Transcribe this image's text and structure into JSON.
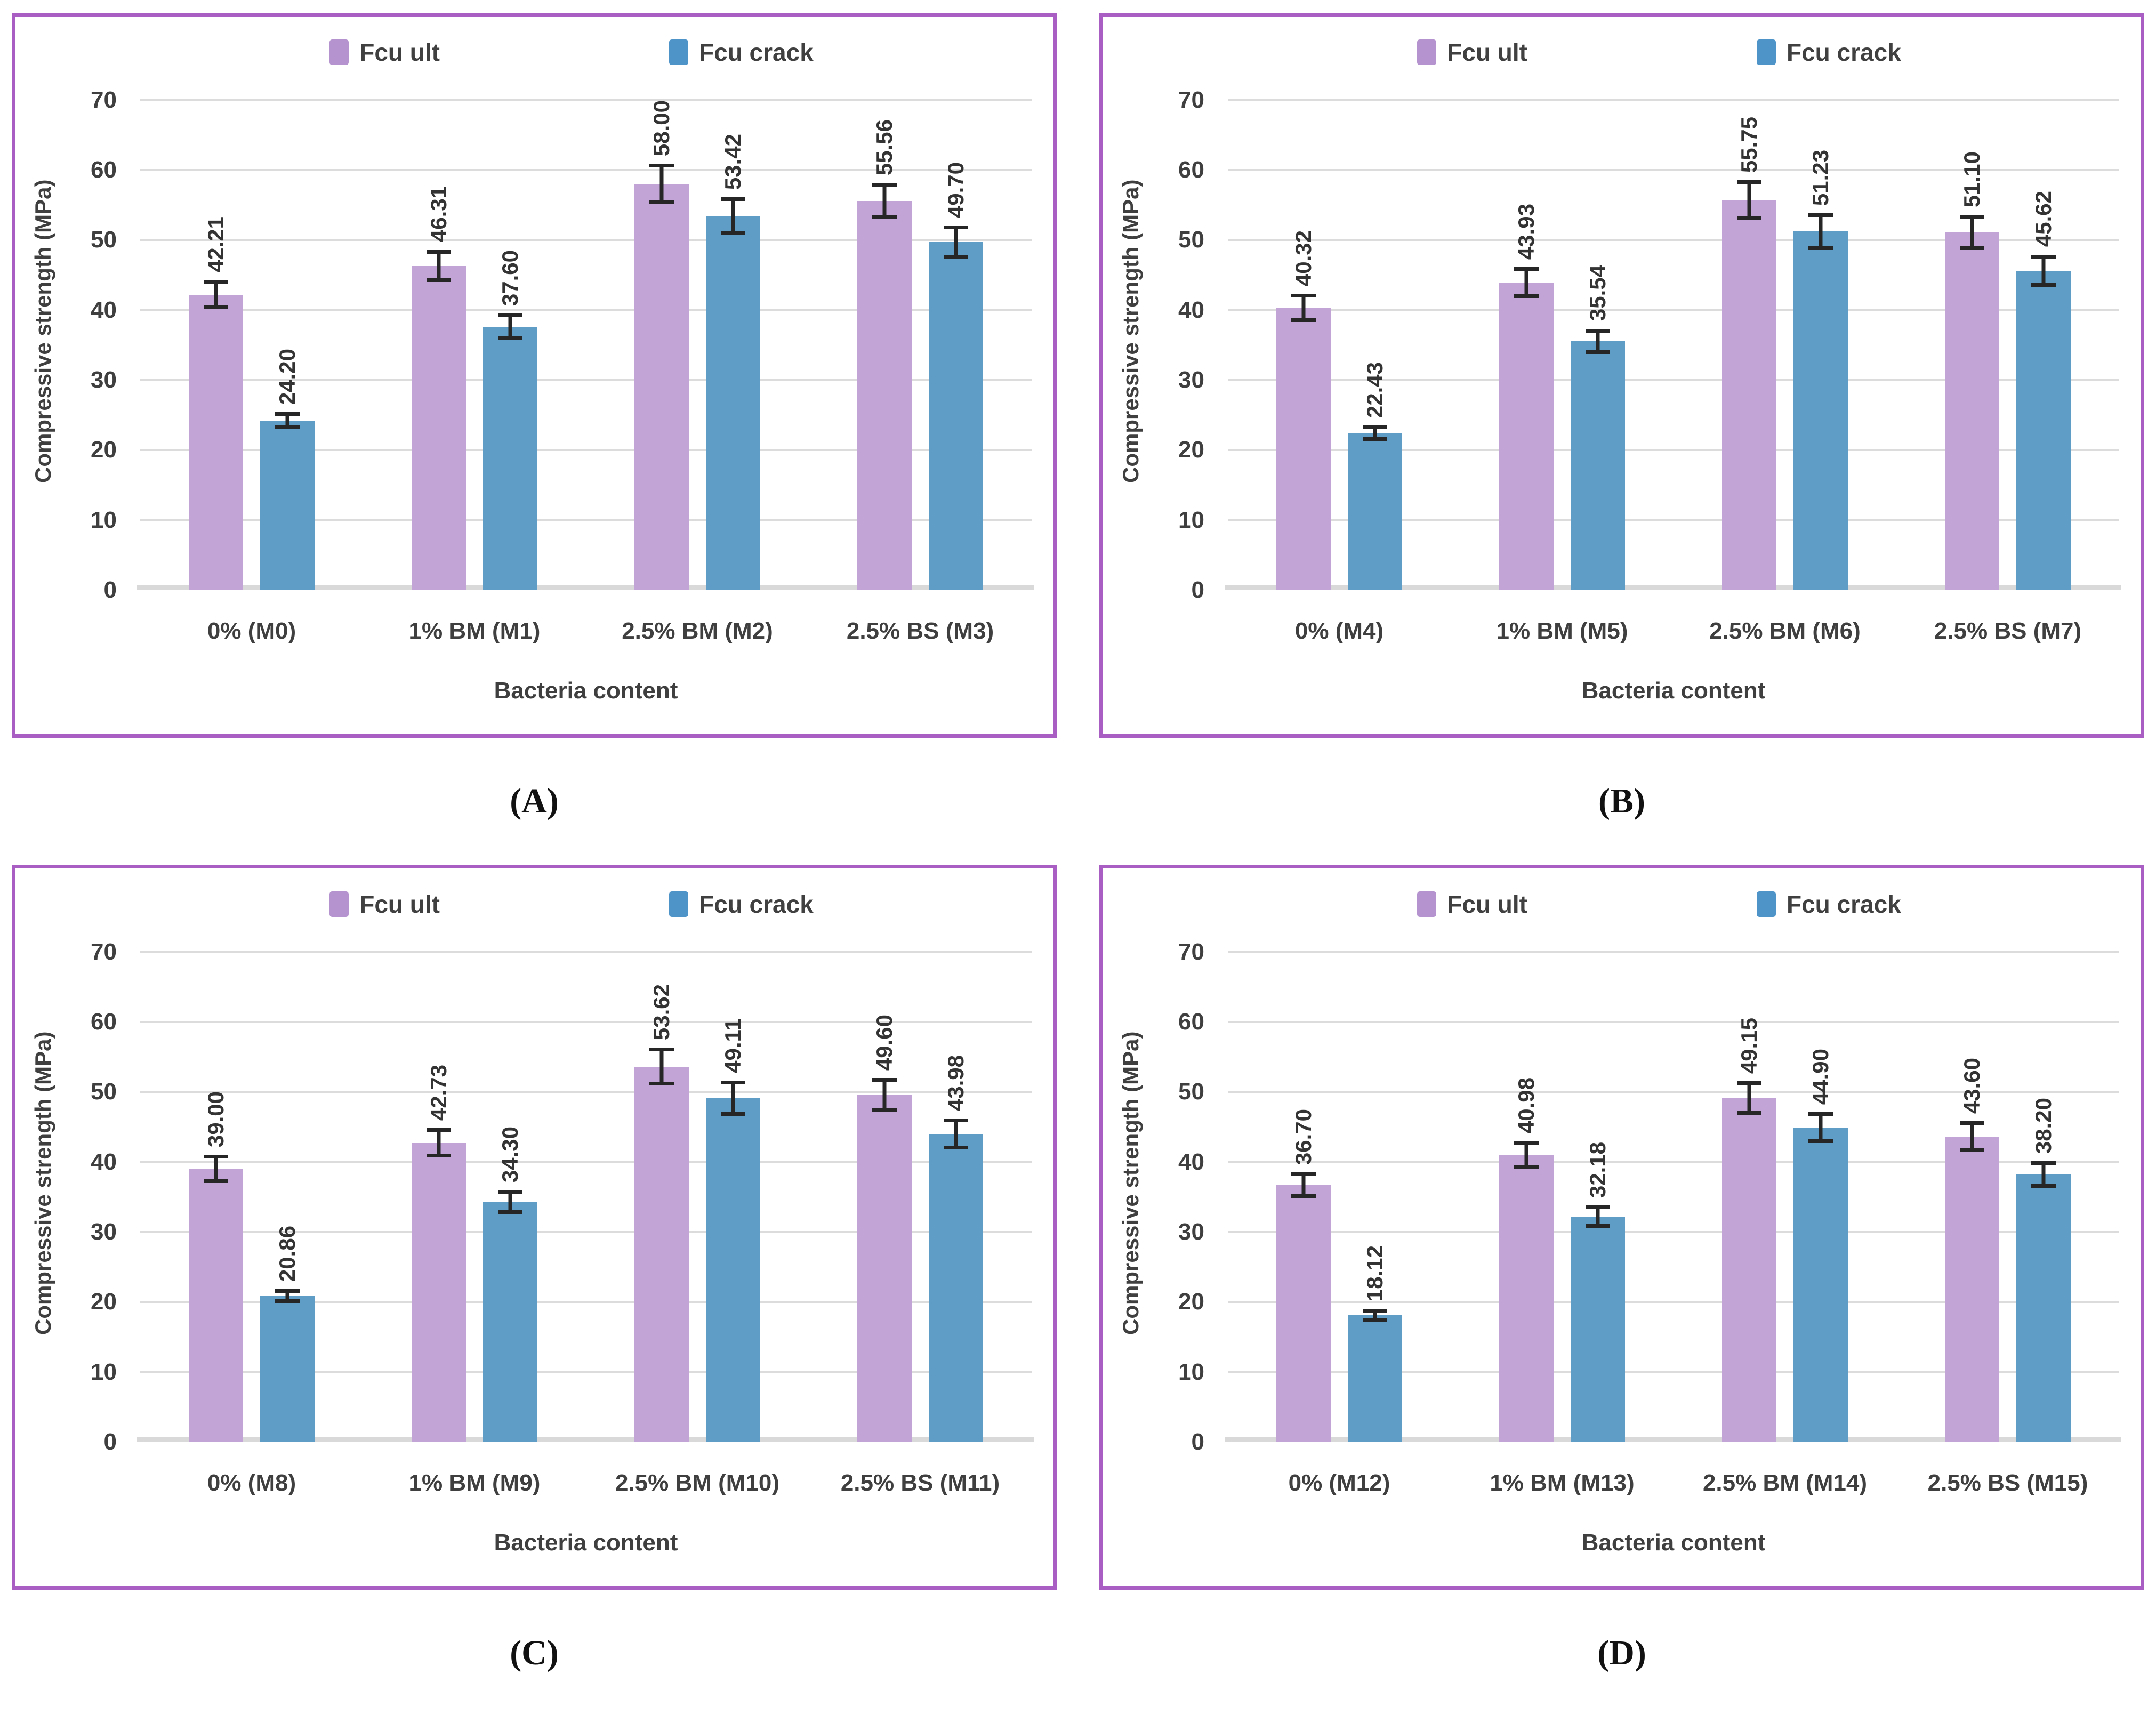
{
  "chart_config": {
    "colors": {
      "fcu_ult_bar": "#c2a4d6",
      "fcu_crack_bar": "#5f9dc6",
      "panel_border": "#a95ec4",
      "gridline": "#dcdcdc",
      "baseline": "#d9d9d9",
      "text": "#3f3f3f",
      "error_bar": "#262626"
    },
    "swatch_colors": [
      "#b493ce",
      "#4f94c9"
    ],
    "y_headroom_units": 74
  },
  "chart_data": [
    {
      "panel_label": "A",
      "caption": "(A)",
      "type": "bar",
      "xlabel": "Bacteria content",
      "ylabel": "Compressive  strength (MPa)",
      "ylim": [
        0,
        70
      ],
      "yticks": [
        0,
        10,
        20,
        30,
        40,
        50,
        60,
        70
      ],
      "grid": true,
      "legend_position": "top-center",
      "legend_entries": [
        "Fcu ult",
        "Fcu crack"
      ],
      "categories": [
        "0% (M0)",
        "1% BM (M1)",
        "2.5% BM (M2)",
        "2.5% BS (M3)"
      ],
      "series": [
        {
          "name": "Fcu ult",
          "color": "#c2a4d6",
          "values": [
            42.21,
            46.31,
            58.0,
            55.56
          ],
          "errors": [
            2.1,
            2.3,
            2.9,
            2.6
          ]
        },
        {
          "name": "Fcu crack",
          "color": "#5f9dc6",
          "values": [
            24.2,
            37.6,
            53.42,
            49.7
          ],
          "errors": [
            1.2,
            1.9,
            2.7,
            2.4
          ]
        }
      ]
    },
    {
      "panel_label": "B",
      "caption": "(B)",
      "type": "bar",
      "xlabel": "Bacteria content",
      "ylabel": "Compressive  strength (MPa)",
      "ylim": [
        0,
        70
      ],
      "yticks": [
        0,
        10,
        20,
        30,
        40,
        50,
        60,
        70
      ],
      "grid": true,
      "legend_position": "top-center",
      "legend_entries": [
        "Fcu ult",
        "Fcu crack"
      ],
      "categories": [
        "0% (M4)",
        "1% BM (M5)",
        "2.5% BM (M6)",
        "2.5% BS (M7)"
      ],
      "series": [
        {
          "name": "Fcu ult",
          "color": "#c2a4d6",
          "values": [
            40.32,
            43.93,
            55.75,
            51.1
          ],
          "errors": [
            2.0,
            2.2,
            2.8,
            2.5
          ]
        },
        {
          "name": "Fcu crack",
          "color": "#5f9dc6",
          "values": [
            22.43,
            35.54,
            51.23,
            45.62
          ],
          "errors": [
            1.1,
            1.8,
            2.6,
            2.3
          ]
        }
      ]
    },
    {
      "panel_label": "C",
      "caption": "(C)",
      "type": "bar",
      "xlabel": "Bacteria content",
      "ylabel": "Compressive  strength (MPa)",
      "ylim": [
        0,
        70
      ],
      "yticks": [
        0,
        10,
        20,
        30,
        40,
        50,
        60,
        70
      ],
      "grid": true,
      "legend_position": "top-center",
      "legend_entries": [
        "Fcu ult",
        "Fcu crack"
      ],
      "categories": [
        "0% (M8)",
        "1% BM (M9)",
        "2.5% BM (M10)",
        "2.5% BS (M11)"
      ],
      "series": [
        {
          "name": "Fcu ult",
          "color": "#c2a4d6",
          "values": [
            39.0,
            42.73,
            53.62,
            49.6
          ],
          "errors": [
            2.0,
            2.1,
            2.7,
            2.4
          ]
        },
        {
          "name": "Fcu crack",
          "color": "#5f9dc6",
          "values": [
            20.86,
            34.3,
            49.11,
            43.98
          ],
          "errors": [
            1.0,
            1.7,
            2.5,
            2.2
          ]
        }
      ]
    },
    {
      "panel_label": "D",
      "caption": "(D)",
      "type": "bar",
      "xlabel": "Bacteria content",
      "ylabel": "Compressive  strength (MPa)",
      "ylim": [
        0,
        70
      ],
      "yticks": [
        0,
        10,
        20,
        30,
        40,
        50,
        60,
        70
      ],
      "grid": true,
      "legend_position": "top-center",
      "legend_entries": [
        "Fcu ult",
        "Fcu crack"
      ],
      "categories": [
        "0% (M12)",
        "1% BM (M13)",
        "2.5% BM (M14)",
        "2.5% BS (M15)"
      ],
      "series": [
        {
          "name": "Fcu ult",
          "color": "#c2a4d6",
          "values": [
            36.7,
            40.98,
            49.15,
            43.6
          ],
          "errors": [
            1.8,
            2.0,
            2.4,
            2.2
          ]
        },
        {
          "name": "Fcu crack",
          "color": "#5f9dc6",
          "values": [
            18.12,
            32.18,
            44.9,
            38.2
          ],
          "errors": [
            0.9,
            1.6,
            2.2,
            1.9
          ]
        }
      ]
    }
  ]
}
